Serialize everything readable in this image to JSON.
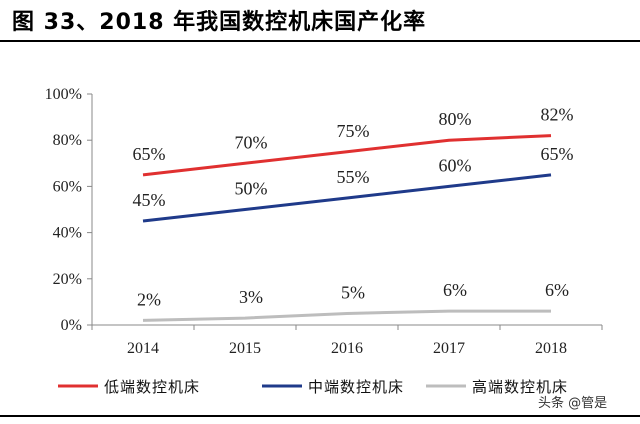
{
  "title": "图 33、2018 年我国数控机床国产化率",
  "watermark": "头条 @管是",
  "chart_data": {
    "type": "line",
    "x": [
      "2014",
      "2015",
      "2016",
      "2017",
      "2018"
    ],
    "ylim": [
      0,
      100
    ],
    "yticks": [
      "0%",
      "20%",
      "40%",
      "60%",
      "80%",
      "100%"
    ],
    "legend_position": "bottom",
    "grid": false,
    "series": [
      {
        "name": "低端数控机床",
        "color": "#e03030",
        "values": [
          65,
          70,
          75,
          80,
          82
        ],
        "labels": [
          "65%",
          "70%",
          "75%",
          "80%",
          "82%"
        ]
      },
      {
        "name": "中端数控机床",
        "color": "#1f3a8a",
        "values": [
          45,
          50,
          55,
          60,
          65
        ],
        "labels": [
          "45%",
          "50%",
          "55%",
          "60%",
          "65%"
        ]
      },
      {
        "name": "高端数控机床",
        "color": "#bdbdbd",
        "values": [
          2,
          3,
          5,
          6,
          6
        ],
        "labels": [
          "2%",
          "3%",
          "5%",
          "6%",
          "6%"
        ]
      }
    ]
  }
}
